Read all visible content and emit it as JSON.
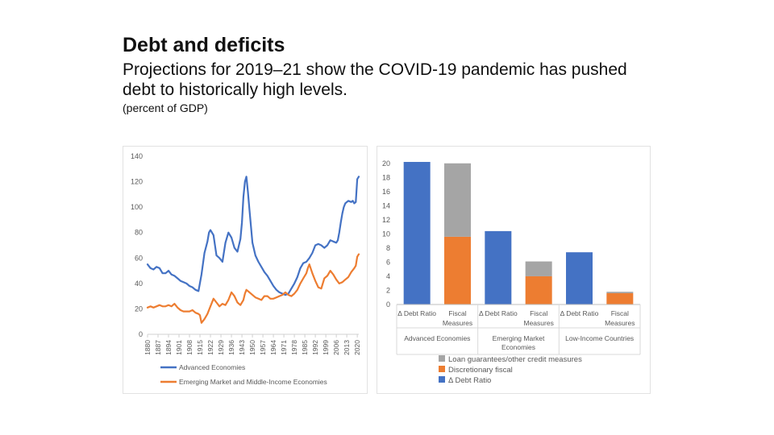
{
  "header": {
    "title": "Debt and deficits",
    "subtitle": "Projections for 2019–21 show the COVID-19 pandemic has pushed debt to historically high levels.",
    "unit": "(percent of GDP)"
  },
  "chart_data": [
    {
      "type": "line",
      "title": "",
      "xlabel": "",
      "ylabel": "",
      "ylim": [
        0,
        140
      ],
      "yticks": [
        0,
        20,
        40,
        60,
        80,
        100,
        120,
        140
      ],
      "xlim": [
        1880,
        2021
      ],
      "xticks": [
        1880,
        1887,
        1894,
        1901,
        1908,
        1915,
        1922,
        1929,
        1936,
        1943,
        1950,
        1957,
        1964,
        1971,
        1978,
        1985,
        1992,
        1999,
        2006,
        2013,
        2020
      ],
      "grid": false,
      "legend_position": "bottom",
      "series": [
        {
          "name": "Advanced Economies",
          "color": "#4472C4",
          "x": [
            1880,
            1882,
            1884,
            1886,
            1888,
            1890,
            1892,
            1894,
            1896,
            1898,
            1900,
            1902,
            1904,
            1906,
            1908,
            1910,
            1912,
            1914,
            1916,
            1918,
            1920,
            1921,
            1922,
            1923,
            1924,
            1926,
            1928,
            1930,
            1932,
            1934,
            1936,
            1938,
            1940,
            1942,
            1943,
            1944,
            1945,
            1946,
            1947,
            1948,
            1950,
            1952,
            1954,
            1956,
            1958,
            1960,
            1962,
            1964,
            1966,
            1968,
            1970,
            1972,
            1974,
            1976,
            1978,
            1980,
            1982,
            1984,
            1986,
            1988,
            1990,
            1992,
            1994,
            1996,
            1998,
            2000,
            2002,
            2004,
            2006,
            2007,
            2008,
            2009,
            2010,
            2011,
            2012,
            2014,
            2016,
            2017,
            2018,
            2019,
            2020,
            2021
          ],
          "values": [
            55,
            52,
            51,
            53,
            52,
            48,
            48,
            50,
            47,
            46,
            44,
            42,
            41,
            40,
            38,
            37,
            35,
            34,
            47,
            64,
            73,
            80,
            82,
            80,
            78,
            62,
            60,
            57,
            72,
            80,
            76,
            68,
            65,
            75,
            88,
            108,
            120,
            124,
            112,
            98,
            72,
            62,
            57,
            53,
            49,
            46,
            42,
            38,
            35,
            33,
            32,
            31,
            32,
            36,
            40,
            45,
            52,
            56,
            57,
            60,
            64,
            70,
            71,
            70,
            68,
            70,
            74,
            73,
            72,
            74,
            80,
            88,
            95,
            100,
            103,
            105,
            104,
            105,
            103,
            104,
            122,
            124
          ]
        },
        {
          "name": "Emerging Market and Middle-Income Economies",
          "color": "#ED7D31",
          "x": [
            1880,
            1882,
            1884,
            1886,
            1888,
            1890,
            1892,
            1894,
            1896,
            1898,
            1900,
            1902,
            1904,
            1906,
            1908,
            1910,
            1912,
            1914,
            1915,
            1916,
            1918,
            1920,
            1922,
            1924,
            1926,
            1928,
            1930,
            1932,
            1934,
            1936,
            1938,
            1940,
            1942,
            1944,
            1945,
            1946,
            1948,
            1950,
            1952,
            1954,
            1956,
            1958,
            1960,
            1962,
            1964,
            1966,
            1968,
            1970,
            1972,
            1974,
            1976,
            1978,
            1980,
            1982,
            1984,
            1986,
            1987,
            1988,
            1990,
            1992,
            1994,
            1996,
            1998,
            2000,
            2002,
            2004,
            2006,
            2008,
            2010,
            2012,
            2014,
            2016,
            2018,
            2019,
            2020,
            2021
          ],
          "values": [
            21,
            22,
            21,
            22,
            23,
            22,
            22,
            23,
            22,
            24,
            21,
            19,
            18,
            18,
            18,
            19,
            17,
            16,
            15,
            9,
            12,
            16,
            22,
            28,
            25,
            22,
            24,
            23,
            27,
            33,
            30,
            25,
            23,
            27,
            32,
            35,
            33,
            31,
            29,
            28,
            27,
            30,
            30,
            28,
            28,
            29,
            30,
            31,
            33,
            31,
            30,
            32,
            35,
            40,
            44,
            48,
            52,
            55,
            48,
            42,
            37,
            36,
            44,
            46,
            50,
            47,
            43,
            40,
            41,
            43,
            45,
            49,
            52,
            54,
            61,
            63
          ]
        }
      ]
    },
    {
      "type": "bar",
      "stacked": true,
      "title": "",
      "xlabel": "",
      "ylabel": "",
      "ylim": [
        0,
        21
      ],
      "yticks": [
        0,
        2,
        4,
        6,
        8,
        10,
        12,
        14,
        16,
        18,
        20
      ],
      "grid": false,
      "legend_position": "bottom",
      "groups": [
        "Advanced Economies",
        "Emerging Market Economies",
        "Low-Income Countries"
      ],
      "categories": [
        "Δ Debt Ratio",
        "Fiscal Measures",
        "Δ Debt Ratio",
        "Fiscal Measures",
        "Δ Debt Ratio",
        "Fiscal Measures"
      ],
      "series": [
        {
          "name": "Δ Debt Ratio",
          "color": "#4472C4",
          "values": [
            20.2,
            0,
            10.4,
            0,
            7.4,
            0
          ]
        },
        {
          "name": "Discretionary fiscal",
          "color": "#ED7D31",
          "values": [
            0,
            9.6,
            0,
            4.0,
            0,
            1.6
          ]
        },
        {
          "name": "Loan guarantees/other credit measures",
          "color": "#A5A5A5",
          "values": [
            0,
            10.4,
            0,
            2.1,
            0,
            0.2
          ]
        }
      ],
      "legend_order": [
        "Loan guarantees/other credit measures",
        "Discretionary fiscal",
        "Δ Debt Ratio"
      ]
    }
  ]
}
